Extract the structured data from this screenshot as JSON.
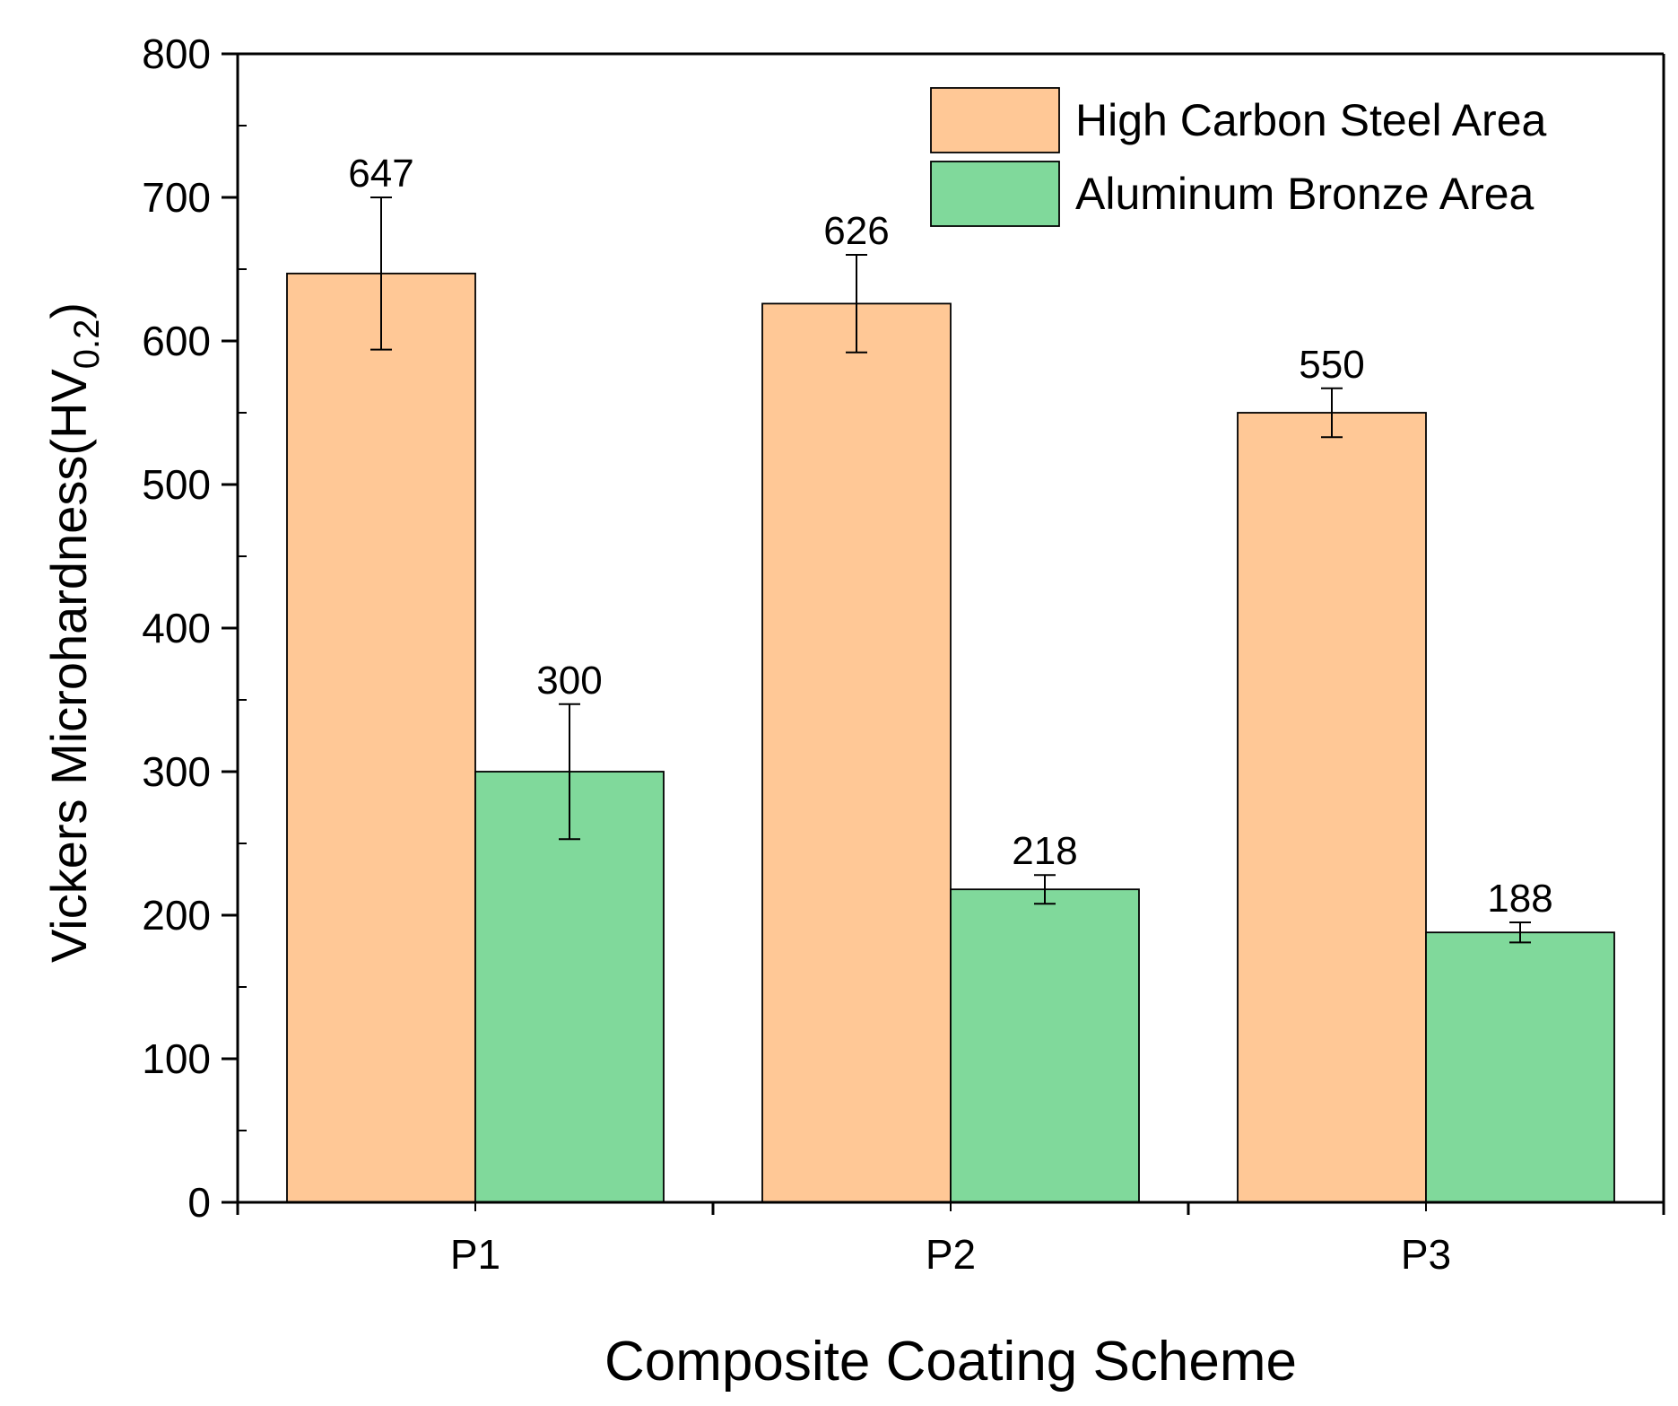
{
  "chart_data": {
    "type": "bar",
    "title": "",
    "xlabel": "Composite Coating Scheme",
    "ylabel": {
      "main": "Vickers Microhardness(HV",
      "subscript": "0.2",
      "suffix": ")"
    },
    "categories": [
      "P1",
      "P2",
      "P3"
    ],
    "ylim": [
      0,
      800
    ],
    "yticks": [
      0,
      100,
      200,
      300,
      400,
      500,
      600,
      700,
      800
    ],
    "y_minor_step": 50,
    "grid": false,
    "legend_position": "top-right",
    "series": [
      {
        "name": "High Carbon Steel Area",
        "color": "#ffc896",
        "values": [
          647,
          626,
          550
        ],
        "labels": [
          "647",
          "626",
          "550"
        ],
        "errors": [
          53,
          34,
          17
        ]
      },
      {
        "name": "Aluminum Bronze Area",
        "color": "#80d99b",
        "values": [
          300,
          218,
          188
        ],
        "labels": [
          "300",
          "218",
          "188"
        ],
        "errors": [
          47,
          10,
          7
        ]
      }
    ]
  }
}
